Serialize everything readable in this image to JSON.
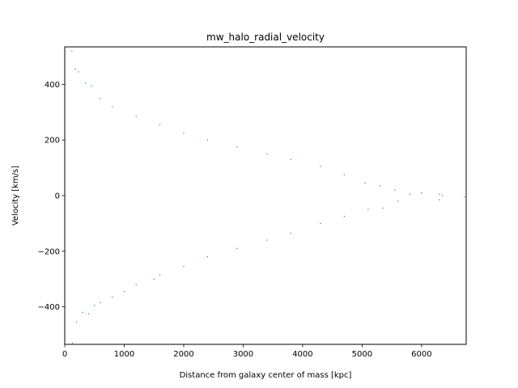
{
  "chart_data": {
    "type": "scatter",
    "title": "mw_halo_radial_velocity",
    "xlabel": "Distance from galaxy center of mass [kpc]",
    "ylabel": "Velocity [km/s]",
    "xlim": [
      0,
      6750
    ],
    "ylim": [
      -535,
      535
    ],
    "xticks": [
      0,
      1000,
      2000,
      3000,
      4000,
      5000,
      6000
    ],
    "xtick_labels": [
      "0",
      "1000",
      "2000",
      "3000",
      "4000",
      "5000",
      "6000"
    ],
    "yticks": [
      -400,
      -200,
      0,
      200,
      400
    ],
    "ytick_labels": [
      "−400",
      "−200",
      "0",
      "200",
      "400"
    ],
    "grid": false,
    "marker_color": "#1f77b4",
    "series": [
      {
        "points": [
          [
            120,
            520
          ],
          [
            180,
            455
          ],
          [
            230,
            445
          ],
          [
            350,
            405
          ],
          [
            450,
            395
          ],
          [
            600,
            350
          ],
          [
            800,
            320
          ],
          [
            1200,
            285
          ],
          [
            1600,
            255
          ],
          [
            2000,
            225
          ],
          [
            2400,
            200
          ],
          [
            2900,
            175
          ],
          [
            3400,
            150
          ],
          [
            3800,
            130
          ],
          [
            4300,
            105
          ],
          [
            4700,
            75
          ],
          [
            5050,
            45
          ],
          [
            5300,
            35
          ],
          [
            5550,
            20
          ],
          [
            5800,
            5
          ],
          [
            6000,
            10
          ],
          [
            6300,
            5
          ],
          [
            6350,
            0
          ],
          [
            6720,
            -5
          ],
          [
            6300,
            -15
          ],
          [
            5600,
            -20
          ],
          [
            5350,
            -45
          ],
          [
            5100,
            -50
          ],
          [
            4700,
            -75
          ],
          [
            4300,
            -100
          ],
          [
            3800,
            -135
          ],
          [
            3400,
            -160
          ],
          [
            2900,
            -190
          ],
          [
            2400,
            -220
          ],
          [
            2000,
            -255
          ],
          [
            1600,
            -285
          ],
          [
            1200,
            -320
          ],
          [
            800,
            -365
          ],
          [
            600,
            -385
          ],
          [
            400,
            -425
          ],
          [
            200,
            -455
          ],
          [
            130,
            -530
          ],
          [
            300,
            -420
          ],
          [
            500,
            -395
          ],
          [
            1000,
            -345
          ],
          [
            1500,
            -300
          ]
        ]
      }
    ]
  }
}
